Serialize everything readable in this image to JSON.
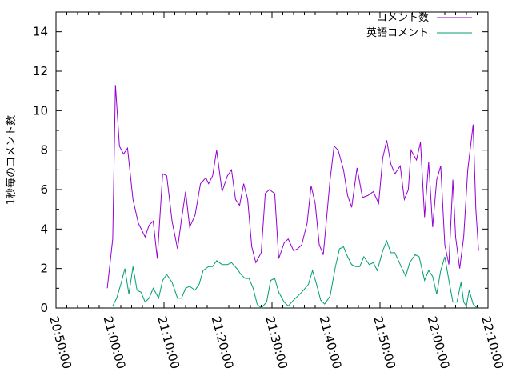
{
  "chart_data": {
    "type": "line",
    "ylabel": "1秒毎のコメント数",
    "xlabel": "",
    "xlim": [
      "20:50:00",
      "22:10:00"
    ],
    "ylim": [
      0,
      15
    ],
    "x_tick_labels": [
      "20:50:00",
      "21:00:00",
      "21:10:00",
      "21:20:00",
      "21:30:00",
      "21:40:00",
      "21:50:00",
      "22:00:00",
      "22:10:00"
    ],
    "y_tick_labels": [
      "0",
      "2",
      "4",
      "6",
      "8",
      "10",
      "12",
      "14"
    ],
    "grid": false,
    "legend_position": "top-right",
    "series": [
      {
        "name": "コメント数",
        "color": "#9400d3",
        "x": [
          "20:59:30",
          "21:00:30",
          "21:01:00",
          "21:01:45",
          "21:02:30",
          "21:03:15",
          "21:04:15",
          "21:05:15",
          "21:06:30",
          "21:07:15",
          "21:08:00",
          "21:08:45",
          "21:09:45",
          "21:10:30",
          "21:11:30",
          "21:12:30",
          "21:13:15",
          "21:14:00",
          "21:14:45",
          "21:15:45",
          "21:16:45",
          "21:17:45",
          "21:18:15",
          "21:19:00",
          "21:19:45",
          "21:20:45",
          "21:21:45",
          "21:22:30",
          "21:23:15",
          "21:24:00",
          "21:24:45",
          "21:25:30",
          "21:26:15",
          "21:27:00",
          "21:28:00",
          "21:28:45",
          "21:29:30",
          "21:30:30",
          "21:31:15",
          "21:32:15",
          "21:33:00",
          "21:34:00",
          "21:34:45",
          "21:35:30",
          "21:36:30",
          "21:37:15",
          "21:38:00",
          "21:38:45",
          "21:39:30",
          "21:40:45",
          "21:41:30",
          "21:42:15",
          "21:43:15",
          "21:44:00",
          "21:44:45",
          "21:45:45",
          "21:46:45",
          "21:47:45",
          "21:48:45",
          "21:49:45",
          "21:50:30",
          "21:51:15",
          "21:52:00",
          "21:52:45",
          "21:53:45",
          "21:54:30",
          "21:55:15",
          "21:55:45",
          "21:56:45",
          "21:57:30",
          "21:58:15",
          "21:59:00",
          "21:59:45",
          "22:00:30",
          "22:01:15",
          "22:02:00",
          "22:02:45",
          "22:03:30",
          "22:04:00",
          "22:04:45",
          "22:05:30",
          "22:06:15",
          "22:07:15",
          "22:07:45",
          "22:08:15"
        ],
        "values": [
          1.0,
          3.5,
          11.3,
          8.2,
          7.8,
          8.1,
          5.5,
          4.3,
          3.6,
          4.2,
          4.4,
          2.5,
          6.8,
          6.7,
          4.4,
          3.0,
          4.5,
          5.9,
          4.1,
          4.7,
          6.3,
          6.6,
          6.3,
          6.7,
          8.0,
          5.9,
          6.7,
          7.0,
          5.5,
          5.2,
          6.3,
          5.5,
          3.1,
          2.3,
          2.8,
          5.8,
          6.0,
          5.8,
          2.5,
          3.3,
          3.5,
          2.9,
          3.0,
          3.2,
          4.3,
          6.2,
          5.3,
          3.2,
          2.7,
          6.5,
          8.2,
          8.0,
          7.0,
          5.7,
          5.1,
          7.1,
          5.6,
          5.7,
          5.9,
          5.3,
          7.6,
          8.5,
          7.3,
          6.8,
          7.2,
          5.5,
          6.0,
          8.0,
          7.5,
          8.4,
          4.6,
          7.4,
          4.1,
          6.5,
          7.2,
          3.2,
          2.2,
          6.5,
          3.6,
          2.0,
          3.6,
          7.0,
          9.3,
          5.0,
          2.9
        ]
      },
      {
        "name": "英語コメント",
        "color": "#009e73",
        "x": [
          "21:00:30",
          "21:01:15",
          "21:02:00",
          "21:02:45",
          "21:03:30",
          "21:04:15",
          "21:05:00",
          "21:05:45",
          "21:06:30",
          "21:07:15",
          "21:08:00",
          "21:09:00",
          "21:09:45",
          "21:10:30",
          "21:11:30",
          "21:12:30",
          "21:13:15",
          "21:14:00",
          "21:14:45",
          "21:15:45",
          "21:16:30",
          "21:17:15",
          "21:18:15",
          "21:19:00",
          "21:19:45",
          "21:20:45",
          "21:21:45",
          "21:22:30",
          "21:23:30",
          "21:24:15",
          "21:25:00",
          "21:25:45",
          "21:26:30",
          "21:27:15",
          "21:28:00",
          "21:29:00",
          "21:29:45",
          "21:30:30",
          "21:31:15",
          "21:32:15",
          "21:33:00",
          "21:34:00",
          "21:34:45",
          "21:35:30",
          "21:36:45",
          "21:37:30",
          "21:38:15",
          "21:39:00",
          "21:39:45",
          "21:40:45",
          "21:41:45",
          "21:42:30",
          "21:43:15",
          "21:44:00",
          "21:44:45",
          "21:45:30",
          "21:46:15",
          "21:47:00",
          "21:48:00",
          "21:48:45",
          "21:49:30",
          "21:50:30",
          "21:51:15",
          "21:52:00",
          "21:52:45",
          "21:53:45",
          "21:54:45",
          "21:55:30",
          "21:56:30",
          "21:57:15",
          "21:58:15",
          "21:59:00",
          "21:59:45",
          "22:00:30",
          "22:01:15",
          "22:02:00",
          "22:02:45",
          "22:03:30",
          "22:04:15",
          "22:05:00",
          "22:05:30",
          "22:06:00",
          "22:06:30",
          "22:07:15",
          "22:08:00"
        ],
        "values": [
          0.1,
          0.5,
          1.2,
          2.0,
          0.7,
          2.1,
          0.9,
          0.8,
          0.3,
          0.5,
          1.0,
          0.5,
          1.4,
          1.7,
          1.3,
          0.5,
          0.5,
          1.0,
          1.1,
          0.9,
          1.2,
          1.9,
          2.1,
          2.1,
          2.4,
          2.2,
          2.2,
          2.3,
          2.0,
          1.7,
          1.5,
          1.5,
          1.0,
          0.2,
          0.0,
          0.3,
          1.4,
          1.5,
          0.8,
          0.3,
          0.1,
          0.4,
          0.6,
          0.8,
          1.2,
          1.9,
          1.2,
          0.4,
          0.2,
          0.6,
          2.1,
          3.0,
          3.1,
          2.6,
          2.2,
          2.1,
          2.1,
          2.6,
          2.2,
          2.3,
          1.9,
          2.9,
          3.4,
          2.8,
          2.8,
          2.2,
          1.6,
          2.3,
          2.7,
          2.6,
          1.4,
          1.9,
          1.6,
          0.7,
          1.9,
          2.6,
          1.4,
          0.3,
          0.3,
          1.3,
          0.3,
          0.1,
          0.9,
          0.2,
          0.0
        ]
      }
    ]
  }
}
